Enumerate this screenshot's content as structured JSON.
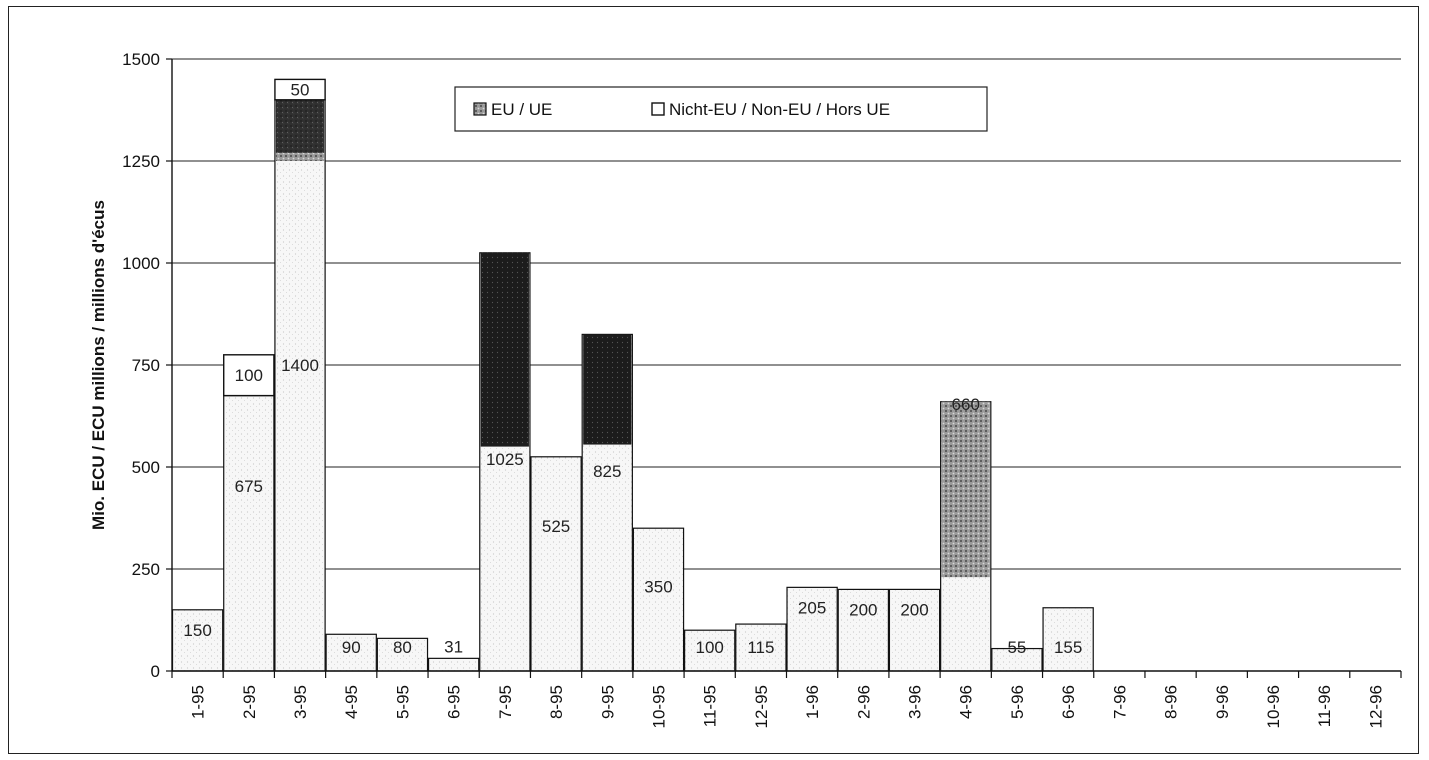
{
  "chart_data": {
    "type": "bar",
    "stacked": true,
    "ylabel": "Mio. ECU / ECU millions / millions d'écus",
    "ylim": [
      0,
      1500
    ],
    "yticks": [
      0,
      250,
      500,
      750,
      1000,
      1250,
      1500
    ],
    "grid": true,
    "legend_position": "top-center",
    "categories": [
      "1-95",
      "2-95",
      "3-95",
      "4-95",
      "5-95",
      "6-95",
      "7-95",
      "8-95",
      "9-95",
      "10-95",
      "11-95",
      "12-95",
      "1-96",
      "2-96",
      "3-96",
      "4-96",
      "5-96",
      "6-96",
      "7-96",
      "8-96",
      "9-96",
      "10-96",
      "11-96",
      "12-96"
    ],
    "series": [
      {
        "name": "EU / UE",
        "values": [
          150,
          675,
          1400,
          90,
          80,
          31,
          1025,
          525,
          825,
          350,
          100,
          115,
          205,
          200,
          200,
          660,
          55,
          155,
          0,
          0,
          0,
          0,
          0,
          0
        ],
        "labels": [
          "150",
          "675",
          "1400",
          "90",
          "80",
          "31",
          "1025",
          "525",
          "825",
          "350",
          "100",
          "115",
          "205",
          "200",
          "200",
          "660",
          "55",
          "155",
          "",
          "",
          "",
          "",
          "",
          ""
        ]
      },
      {
        "name": "Nicht-EU / Non-EU / Hors UE",
        "values": [
          0,
          100,
          50,
          0,
          0,
          0,
          0,
          0,
          0,
          0,
          0,
          0,
          0,
          0,
          0,
          0,
          0,
          0,
          0,
          0,
          0,
          0,
          0,
          0
        ],
        "labels": [
          "",
          "100",
          "50",
          "",
          "",
          "",
          "",
          "",
          "",
          "",
          "",
          "",
          "",
          "",
          "",
          "",
          "",
          "",
          "",
          "",
          "",
          "",
          "",
          ""
        ]
      }
    ],
    "colors": {
      "eu": "#f2f2f2",
      "noneu": "#ffffff",
      "dark": "#1e1e1e",
      "medium": "#7a7a7a",
      "grid": "#222222"
    }
  }
}
